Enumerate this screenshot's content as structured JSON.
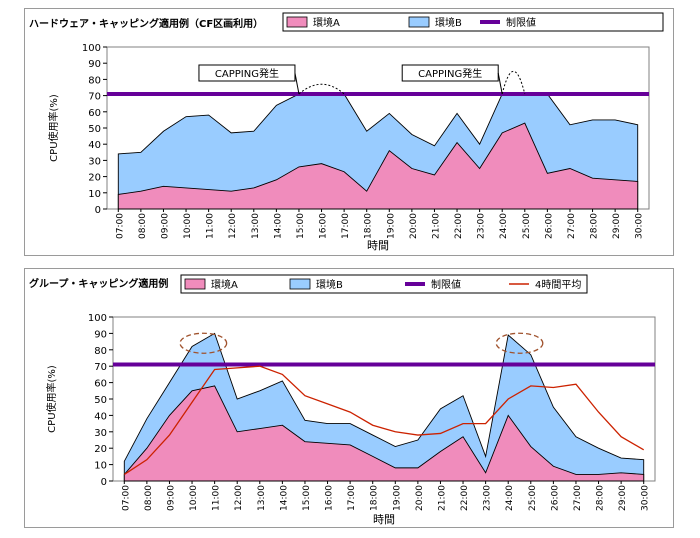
{
  "chart_data": [
    {
      "type": "area",
      "title": "ハードウェア・キャッピング適用例（CF区画利用）",
      "xlabel": "時間",
      "ylabel": "CPU使用率(%)",
      "ylim": [
        0,
        100
      ],
      "yticks": [
        0,
        10,
        20,
        30,
        40,
        50,
        60,
        70,
        80,
        90,
        100
      ],
      "grid": false,
      "legend_position": "top",
      "categories": [
        "07:00",
        "08:00",
        "09:00",
        "10:00",
        "11:00",
        "12:00",
        "13:00",
        "14:00",
        "15:00",
        "16:00",
        "17:00",
        "18:00",
        "19:00",
        "20:00",
        "21:00",
        "22:00",
        "23:00",
        "24:00",
        "25:00",
        "26:00",
        "27:00",
        "28:00",
        "29:00",
        "30:00"
      ],
      "series": [
        {
          "name": "環境A",
          "kind": "area",
          "color": "#f08cbc",
          "values": [
            9,
            11,
            14,
            13,
            12,
            11,
            13,
            18,
            26,
            28,
            23,
            11,
            36,
            25,
            21,
            41,
            25,
            47,
            53,
            22,
            25,
            19,
            18,
            17
          ]
        },
        {
          "name": "環境B",
          "kind": "area",
          "color": "#99ccff",
          "values": [
            34,
            35,
            48,
            57,
            58,
            47,
            48,
            64,
            71,
            71,
            71,
            48,
            59,
            46,
            39,
            59,
            40,
            71,
            71,
            71,
            52,
            55,
            55,
            52
          ]
        },
        {
          "name": "制限値",
          "kind": "line",
          "color": "#660099",
          "values": [
            71,
            71,
            71,
            71,
            71,
            71,
            71,
            71,
            71,
            71,
            71,
            71,
            71,
            71,
            71,
            71,
            71,
            71,
            71,
            71,
            71,
            71,
            71,
            71
          ]
        }
      ],
      "uncapped_dotted": [
        {
          "x": [
            "15:00",
            "16:00",
            "17:00"
          ],
          "y": [
            71,
            77,
            71
          ]
        },
        {
          "x": [
            "24:00",
            "24:30",
            "25:00"
          ],
          "y": [
            71,
            85,
            71
          ]
        }
      ],
      "annotations": [
        {
          "text": "CAPPING発生",
          "anchor": "15:00"
        },
        {
          "text": "CAPPING発生",
          "anchor": "24:00"
        }
      ]
    },
    {
      "type": "area",
      "title": "グループ・キャッピング適用例",
      "xlabel": "時間",
      "ylabel": "CPU使用率(%)",
      "ylim": [
        0,
        100
      ],
      "yticks": [
        0,
        10,
        20,
        30,
        40,
        50,
        60,
        70,
        80,
        90,
        100
      ],
      "grid": false,
      "legend_position": "top",
      "categories": [
        "07:00",
        "08:00",
        "09:00",
        "10:00",
        "11:00",
        "12:00",
        "13:00",
        "14:00",
        "15:00",
        "16:00",
        "17:00",
        "18:00",
        "19:00",
        "20:00",
        "21:00",
        "22:00",
        "23:00",
        "24:00",
        "25:00",
        "26:00",
        "27:00",
        "28:00",
        "29:00",
        "30:00"
      ],
      "series": [
        {
          "name": "環境A",
          "kind": "area",
          "color": "#f08cbc",
          "values": [
            4,
            20,
            40,
            55,
            58,
            30,
            32,
            34,
            24,
            23,
            22,
            15,
            8,
            8,
            18,
            27,
            5,
            40,
            21,
            9,
            4,
            4,
            5,
            4
          ]
        },
        {
          "name": "環境B",
          "kind": "area",
          "color": "#99ccff",
          "values": [
            12,
            38,
            60,
            82,
            90,
            50,
            55,
            61,
            37,
            35,
            35,
            28,
            21,
            25,
            44,
            52,
            15,
            89,
            77,
            45,
            27,
            20,
            14,
            13
          ]
        },
        {
          "name": "制限値",
          "kind": "line",
          "color": "#660099",
          "values": [
            71,
            71,
            71,
            71,
            71,
            71,
            71,
            71,
            71,
            71,
            71,
            71,
            71,
            71,
            71,
            71,
            71,
            71,
            71,
            71,
            71,
            71,
            71,
            71
          ]
        },
        {
          "name": "4時間平均",
          "kind": "line",
          "color": "#cc2200",
          "values": [
            4,
            13,
            28,
            48,
            68,
            69,
            70,
            65,
            52,
            47,
            42,
            34,
            30,
            28,
            29,
            35,
            35,
            50,
            58,
            57,
            59,
            42,
            27,
            19
          ]
        }
      ],
      "highlight_ellipses": [
        "10:00-11:00",
        "24:00-25:00"
      ]
    }
  ]
}
